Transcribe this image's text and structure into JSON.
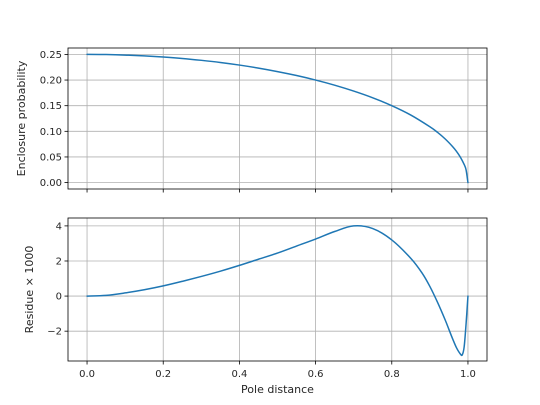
{
  "chart_data": [
    {
      "type": "line",
      "ylabel": "Enclosure probability",
      "xlabel": "",
      "xlim": [
        -0.05,
        1.05
      ],
      "ylim": [
        -0.0125,
        0.2625
      ],
      "xticks": [
        0.0,
        0.2,
        0.4,
        0.6,
        0.8,
        1.0
      ],
      "show_xtick_labels": false,
      "yticks": [
        0.0,
        0.05,
        0.1,
        0.15,
        0.2,
        0.25
      ],
      "ytick_labels": [
        "0.00",
        "0.05",
        "0.10",
        "0.15",
        "0.20",
        "0.25"
      ],
      "grid": true,
      "series": [
        {
          "color": "#1f77b4",
          "x": [
            0.0,
            0.05,
            0.1,
            0.15,
            0.2,
            0.25,
            0.3,
            0.35,
            0.4,
            0.45,
            0.5,
            0.55,
            0.6,
            0.65,
            0.7,
            0.75,
            0.8,
            0.85,
            0.9,
            0.92,
            0.94,
            0.96,
            0.97,
            0.98,
            0.99,
            0.995,
            1.0
          ],
          "y": [
            0.25,
            0.2497,
            0.2487,
            0.2471,
            0.2449,
            0.2421,
            0.2385,
            0.2343,
            0.2292,
            0.2233,
            0.2165,
            0.2088,
            0.2,
            0.19,
            0.1785,
            0.1654,
            0.15,
            0.1317,
            0.1089,
            0.098,
            0.0853,
            0.07,
            0.0608,
            0.0497,
            0.0353,
            0.025,
            0.0
          ]
        }
      ]
    },
    {
      "type": "line",
      "ylabel": "Residue × 1000",
      "xlabel": "Pole distance",
      "xlim": [
        -0.05,
        1.05
      ],
      "ylim": [
        -3.7,
        4.45
      ],
      "xticks": [
        0.0,
        0.2,
        0.4,
        0.6,
        0.8,
        1.0
      ],
      "xtick_labels": [
        "0.0",
        "0.2",
        "0.4",
        "0.6",
        "0.8",
        "1.0"
      ],
      "yticks": [
        -2,
        0,
        2,
        4
      ],
      "ytick_labels": [
        "−2",
        "0",
        "2",
        "4"
      ],
      "grid": true,
      "series": [
        {
          "color": "#1f77b4",
          "x": [
            0.0,
            0.05,
            0.1,
            0.15,
            0.2,
            0.25,
            0.3,
            0.35,
            0.4,
            0.45,
            0.5,
            0.55,
            0.6,
            0.65,
            0.7,
            0.75,
            0.8,
            0.85,
            0.88,
            0.9,
            0.92,
            0.94,
            0.95,
            0.96,
            0.97,
            0.98,
            0.985,
            0.99,
            0.995,
            1.0
          ],
          "y": [
            0.0,
            0.04,
            0.18,
            0.36,
            0.58,
            0.84,
            1.12,
            1.42,
            1.75,
            2.1,
            2.45,
            2.85,
            3.25,
            3.68,
            4.0,
            3.85,
            3.2,
            2.15,
            1.3,
            0.55,
            -0.35,
            -1.35,
            -1.9,
            -2.45,
            -2.95,
            -3.3,
            -3.35,
            -2.9,
            -1.6,
            0.0
          ]
        }
      ]
    }
  ]
}
